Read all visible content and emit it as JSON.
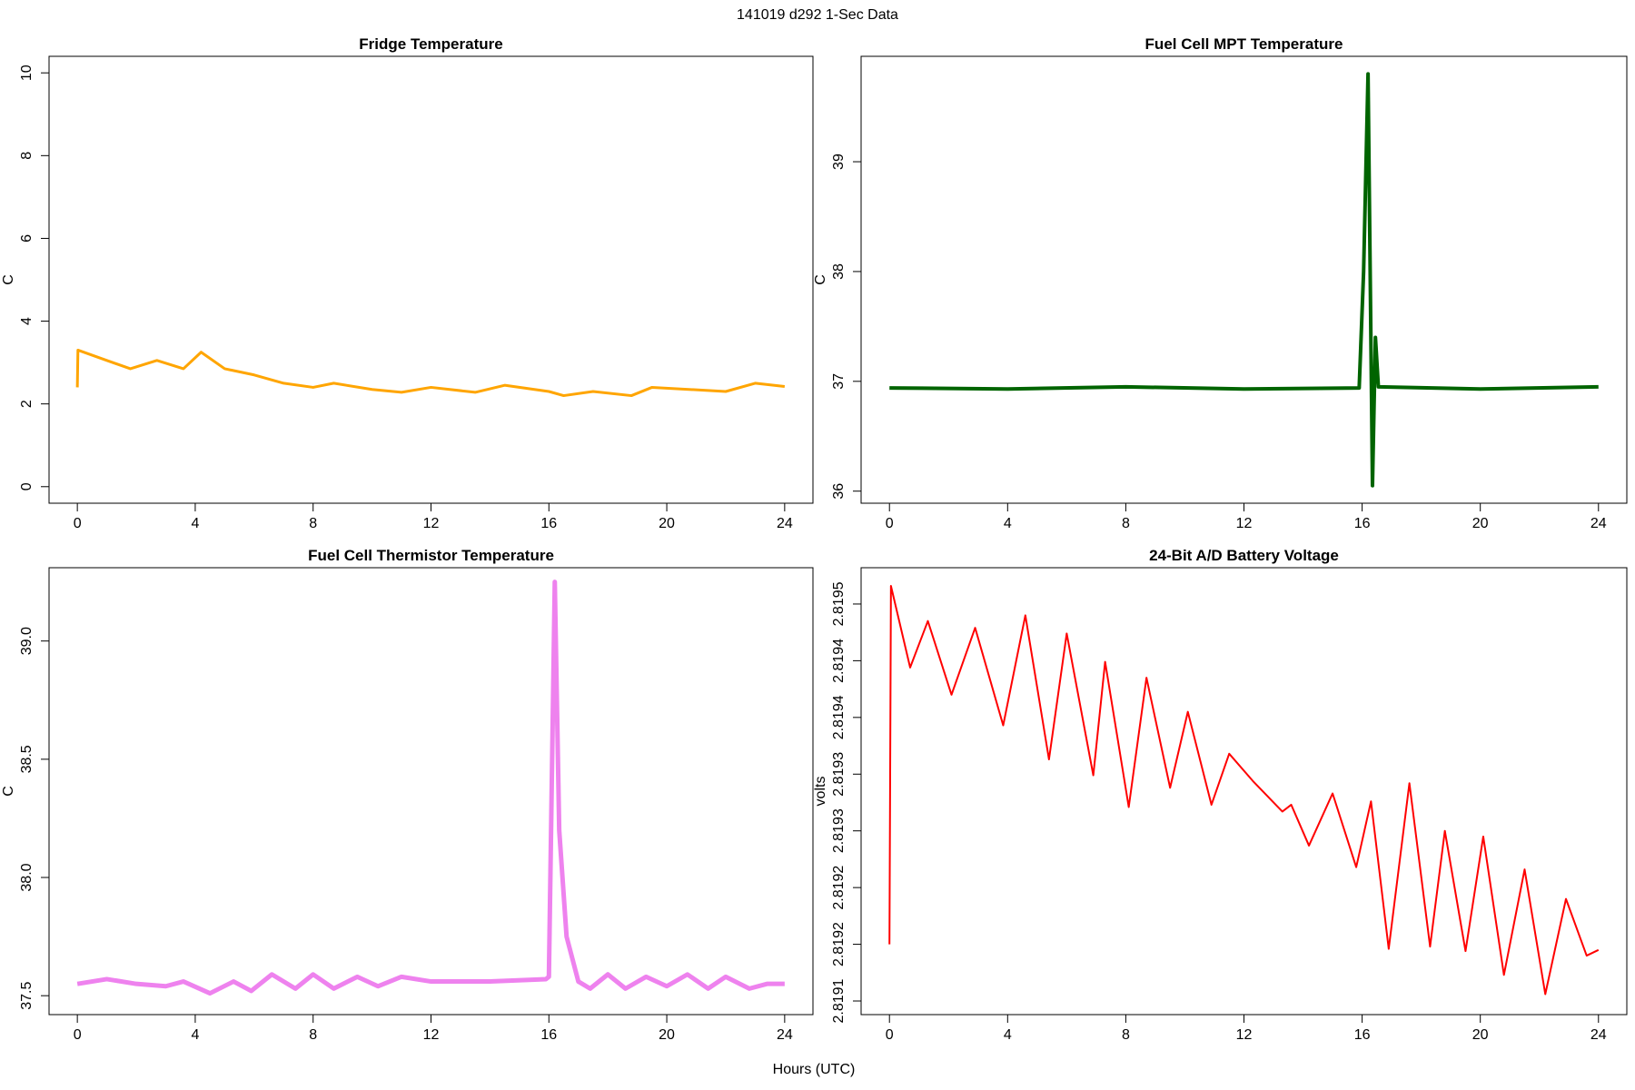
{
  "title": "141019   d292   1-Sec Data",
  "xlabel": "Hours (UTC)",
  "chart_data": [
    {
      "type": "line",
      "title": "Fridge Temperature",
      "ylabel": "C",
      "xlim": [
        -0.96,
        24.96
      ],
      "xticks": [
        0,
        4,
        8,
        12,
        16,
        20,
        24
      ],
      "ylim": [
        -0.4,
        10.4
      ],
      "yticks": [
        0,
        2,
        4,
        6,
        8,
        10
      ],
      "series": [
        {
          "name": "Fridge Temperature",
          "color": "#ffa500",
          "x": [
            0,
            0.02,
            1,
            1.8,
            2.7,
            3.6,
            4.2,
            5,
            6,
            7,
            8,
            8.7,
            10,
            11,
            12,
            13.5,
            14.5,
            16,
            16.5,
            17.5,
            18.8,
            19.5,
            22,
            23,
            24
          ],
          "values": [
            2.4,
            3.3,
            3.05,
            2.85,
            3.05,
            2.85,
            3.25,
            2.85,
            2.7,
            2.5,
            2.4,
            2.5,
            2.35,
            2.28,
            2.4,
            2.28,
            2.45,
            2.3,
            2.2,
            2.3,
            2.2,
            2.4,
            2.3,
            2.5,
            2.42
          ]
        }
      ]
    },
    {
      "type": "line",
      "title": "Fuel Cell MPT Temperature",
      "ylabel": "C",
      "xlim": [
        -0.96,
        24.96
      ],
      "xticks": [
        0,
        4,
        8,
        12,
        16,
        20,
        24
      ],
      "ylim": [
        35.89,
        39.96
      ],
      "yticks": [
        36,
        37,
        38,
        39
      ],
      "series": [
        {
          "name": "Fuel Cell MPT Temperature",
          "color": "#006400",
          "x": [
            0,
            4,
            8,
            12,
            15.9,
            16.05,
            16.2,
            16.35,
            16.45,
            16.55,
            20,
            24
          ],
          "values": [
            36.94,
            36.93,
            36.95,
            36.93,
            36.94,
            38.0,
            39.8,
            36.05,
            37.4,
            36.95,
            36.93,
            36.95
          ]
        }
      ]
    },
    {
      "type": "line",
      "title": "Fuel Cell Thermistor Temperature",
      "ylabel": "C",
      "xlim": [
        -0.96,
        24.96
      ],
      "xticks": [
        0,
        4,
        8,
        12,
        16,
        20,
        24
      ],
      "ylim": [
        37.42,
        39.31
      ],
      "yticks": [
        37.5,
        {
          "value": 38,
          "label": "38.0"
        },
        38.5,
        {
          "value": 39,
          "label": "39.0"
        }
      ],
      "series": [
        {
          "name": "Fuel Cell Thermistor Temperature",
          "color": "#ee82ee",
          "x": [
            0,
            1,
            2,
            3,
            3.6,
            4.5,
            5.3,
            5.9,
            6.6,
            7.4,
            8,
            8.7,
            9.5,
            10.2,
            11,
            12,
            14,
            15.9,
            16.0,
            16.2,
            16.35,
            16.6,
            17,
            17.4,
            18,
            18.6,
            19.3,
            20,
            20.7,
            21.4,
            22,
            22.8,
            23.4,
            24
          ],
          "values": [
            37.55,
            37.57,
            37.55,
            37.54,
            37.56,
            37.51,
            37.56,
            37.52,
            37.59,
            37.53,
            37.59,
            37.53,
            37.58,
            37.54,
            37.58,
            37.56,
            37.56,
            37.57,
            37.58,
            39.25,
            38.2,
            37.75,
            37.56,
            37.53,
            37.59,
            37.53,
            37.58,
            37.54,
            37.59,
            37.53,
            37.58,
            37.53,
            37.55,
            37.55
          ]
        }
      ]
    },
    {
      "type": "line",
      "title": "24-Bit A/D Battery Voltage",
      "ylabel": "volts",
      "xlim": [
        -0.96,
        24.96
      ],
      "xticks": [
        0,
        4,
        8,
        12,
        16,
        20,
        24
      ],
      "ylim": [
        2.819088,
        2.819482
      ],
      "yticks": [
        {
          "value": 2.8191,
          "label": "2.8191"
        },
        {
          "value": 2.81915,
          "label": "2.8192"
        },
        {
          "value": 2.8192,
          "label": "2.8192"
        },
        {
          "value": 2.81925,
          "label": "2.8193"
        },
        {
          "value": 2.8193,
          "label": "2.8193"
        },
        {
          "value": 2.81935,
          "label": "2.8194"
        },
        {
          "value": 2.8194,
          "label": "2.8194"
        },
        {
          "value": 2.81945,
          "label": "2.8195"
        }
      ],
      "series": [
        {
          "name": "24-Bit A/D Battery Voltage",
          "color": "#ff0000",
          "x": [
            0,
            0.05,
            0.7,
            1.3,
            2.1,
            2.9,
            3.85,
            4.6,
            5.4,
            6.0,
            6.9,
            7.3,
            8.1,
            8.7,
            9.5,
            10.1,
            10.9,
            11.5,
            12.3,
            13.3,
            13.6,
            14.2,
            15.0,
            15.8,
            16.3,
            16.9,
            17.6,
            18.3,
            18.8,
            19.5,
            20.1,
            20.8,
            21.5,
            22.2,
            22.9,
            23.6,
            24
          ],
          "values": [
            2.81915,
            2.819466,
            2.819394,
            2.819435,
            2.81937,
            2.819429,
            2.819343,
            2.81944,
            2.819313,
            2.819424,
            2.819299,
            2.819399,
            2.819271,
            2.819385,
            2.819288,
            2.819355,
            2.819273,
            2.819318,
            2.819294,
            2.819267,
            2.819273,
            2.819237,
            2.819283,
            2.819218,
            2.819276,
            2.819146,
            2.819292,
            2.819148,
            2.81925,
            2.819144,
            2.819245,
            2.819123,
            2.819216,
            2.819106,
            2.81919,
            2.81914,
            2.819145
          ]
        }
      ]
    }
  ]
}
